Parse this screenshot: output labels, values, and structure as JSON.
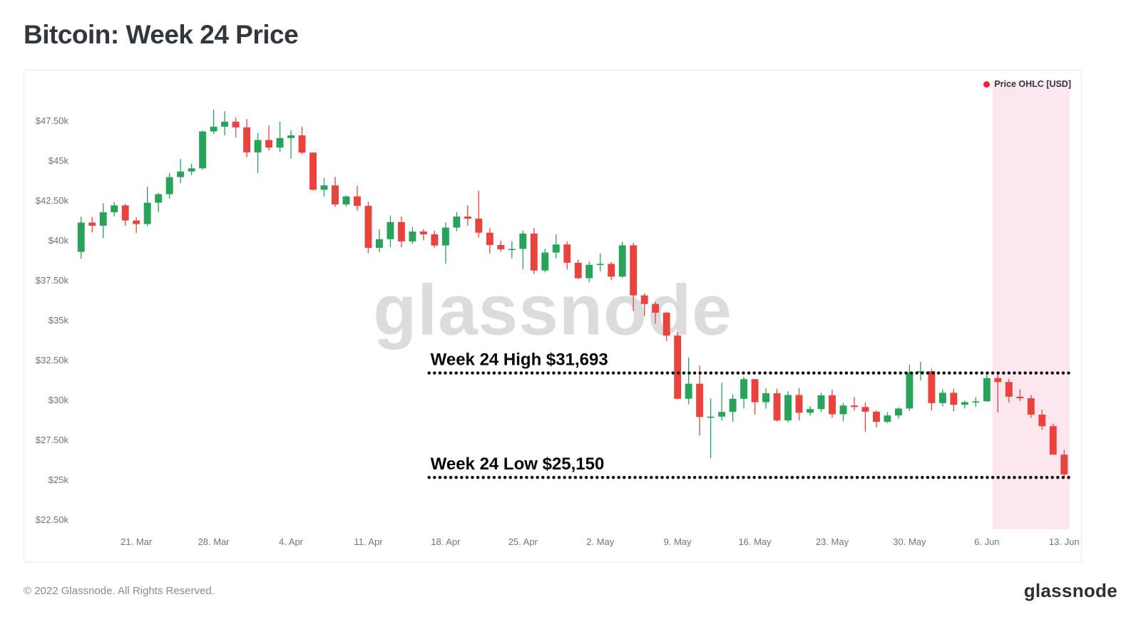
{
  "page": {
    "title": "Bitcoin: Week 24 Price",
    "watermark": "glassnode",
    "footer_left": "© 2022 Glassnode. All Rights Reserved.",
    "footer_logo": "glassnode"
  },
  "chart_data": {
    "type": "candlestick",
    "title": "Bitcoin: Week 24 Price",
    "xlabel": "",
    "ylabel": "Price OHLC [USD]",
    "grid": false,
    "ylim": [
      21900,
      49300
    ],
    "legend": {
      "label": "Price OHLC [USD]",
      "color": "#f5222d",
      "position": "top-right"
    },
    "colors": {
      "up": "#27a35a",
      "down": "#e8433d"
    },
    "highlight": {
      "name": "week-24-region",
      "start_date": "2022-06-07",
      "color": "#fce7ee"
    },
    "annotations": {
      "high": {
        "label": "Week 24 High $31,693",
        "value": 31693,
        "start_date": "2022-04-17"
      },
      "low": {
        "label": "Week 24 Low $25,150",
        "value": 25150,
        "start_date": "2022-04-17"
      }
    },
    "yticks": [
      {
        "value": 47500,
        "label": "$47.50k"
      },
      {
        "value": 45000,
        "label": "$45k"
      },
      {
        "value": 42500,
        "label": "$42.50k"
      },
      {
        "value": 40000,
        "label": "$40k"
      },
      {
        "value": 37500,
        "label": "$37.50k"
      },
      {
        "value": 35000,
        "label": "$35k"
      },
      {
        "value": 32500,
        "label": "$32.50k"
      },
      {
        "value": 30000,
        "label": "$30k"
      },
      {
        "value": 27500,
        "label": "$27.50k"
      },
      {
        "value": 25000,
        "label": "$25k"
      },
      {
        "value": 22500,
        "label": "$22.50k"
      }
    ],
    "xticks": [
      {
        "date": "2022-03-21",
        "label": "21. Mar"
      },
      {
        "date": "2022-03-28",
        "label": "28. Mar"
      },
      {
        "date": "2022-04-04",
        "label": "4. Apr"
      },
      {
        "date": "2022-04-11",
        "label": "11. Apr"
      },
      {
        "date": "2022-04-18",
        "label": "18. Apr"
      },
      {
        "date": "2022-04-25",
        "label": "25. Apr"
      },
      {
        "date": "2022-05-02",
        "label": "2. May"
      },
      {
        "date": "2022-05-09",
        "label": "9. May"
      },
      {
        "date": "2022-05-16",
        "label": "16. May"
      },
      {
        "date": "2022-05-23",
        "label": "23. May"
      },
      {
        "date": "2022-05-30",
        "label": "30. May"
      },
      {
        "date": "2022-06-06",
        "label": "6. Jun"
      },
      {
        "date": "2022-06-13",
        "label": "13. Jun"
      }
    ],
    "ohlc_columns": [
      "date",
      "open",
      "high",
      "low",
      "close"
    ],
    "ohlc": [
      [
        "2022-03-16",
        39280,
        41478,
        38850,
        41114
      ],
      [
        "2022-03-17",
        41114,
        41459,
        40500,
        40917
      ],
      [
        "2022-03-18",
        40917,
        42325,
        40135,
        41757
      ],
      [
        "2022-03-19",
        41757,
        42400,
        41499,
        42190
      ],
      [
        "2022-03-20",
        42190,
        42301,
        40911,
        41247
      ],
      [
        "2022-03-21",
        41247,
        41454,
        40467,
        41022
      ],
      [
        "2022-03-22",
        41022,
        43361,
        40890,
        42358
      ],
      [
        "2022-03-23",
        42358,
        42968,
        41762,
        42892
      ],
      [
        "2022-03-24",
        42892,
        44220,
        42611,
        43960
      ],
      [
        "2022-03-25",
        43960,
        45094,
        43579,
        44313
      ],
      [
        "2022-03-26",
        44313,
        44797,
        44084,
        44511
      ],
      [
        "2022-03-27",
        44511,
        46896,
        44421,
        46821
      ],
      [
        "2022-03-28",
        46821,
        48189,
        46662,
        47122
      ],
      [
        "2022-03-29",
        47122,
        48096,
        46578,
        47434
      ],
      [
        "2022-03-30",
        47434,
        47700,
        46456,
        47078
      ],
      [
        "2022-03-31",
        47078,
        47600,
        45211,
        45510
      ],
      [
        "2022-04-01",
        45510,
        46720,
        44219,
        46283
      ],
      [
        "2022-04-02",
        46283,
        47213,
        45620,
        45811
      ],
      [
        "2022-04-03",
        45811,
        47444,
        45530,
        46407
      ],
      [
        "2022-04-04",
        46407,
        46890,
        45118,
        46580
      ],
      [
        "2022-04-05",
        46580,
        47106,
        45386,
        45497
      ],
      [
        "2022-04-06",
        45497,
        45507,
        43121,
        43170
      ],
      [
        "2022-04-07",
        43170,
        43900,
        42727,
        43444
      ],
      [
        "2022-04-08",
        43444,
        43970,
        42107,
        42252
      ],
      [
        "2022-04-09",
        42252,
        42800,
        42125,
        42753
      ],
      [
        "2022-04-10",
        42753,
        43410,
        41868,
        42158
      ],
      [
        "2022-04-11",
        42158,
        42414,
        39200,
        39530
      ],
      [
        "2022-04-12",
        39530,
        40699,
        39254,
        40074
      ],
      [
        "2022-04-13",
        40074,
        41561,
        39588,
        41147
      ],
      [
        "2022-04-14",
        41147,
        41495,
        39568,
        39935
      ],
      [
        "2022-04-15",
        39935,
        40846,
        39766,
        40551
      ],
      [
        "2022-04-16",
        40551,
        40709,
        40009,
        40378
      ],
      [
        "2022-04-17",
        40378,
        40595,
        39546,
        39678
      ],
      [
        "2022-04-18",
        39678,
        41116,
        38536,
        40801
      ],
      [
        "2022-04-19",
        40801,
        41760,
        40571,
        41493
      ],
      [
        "2022-04-20",
        41493,
        42199,
        40916,
        41358
      ],
      [
        "2022-04-21",
        41358,
        43119,
        40175,
        40480
      ],
      [
        "2022-04-22",
        40480,
        40795,
        39177,
        39709
      ],
      [
        "2022-04-23",
        39709,
        39980,
        39285,
        39439
      ],
      [
        "2022-04-24",
        39439,
        39940,
        38881,
        39463
      ],
      [
        "2022-04-25",
        39463,
        40616,
        38200,
        40426
      ],
      [
        "2022-04-26",
        40426,
        40777,
        37886,
        38112
      ],
      [
        "2022-04-27",
        38112,
        39474,
        37997,
        39235
      ],
      [
        "2022-04-28",
        39235,
        40372,
        38883,
        39742
      ],
      [
        "2022-04-29",
        39742,
        39925,
        38175,
        38596
      ],
      [
        "2022-04-30",
        38596,
        38795,
        37578,
        37630
      ],
      [
        "2022-05-01",
        37630,
        38675,
        37386,
        38468
      ],
      [
        "2022-05-02",
        38468,
        39167,
        38052,
        38525
      ],
      [
        "2022-05-03",
        38525,
        38651,
        37517,
        37728
      ],
      [
        "2022-05-04",
        37728,
        39902,
        37670,
        39690
      ],
      [
        "2022-05-05",
        39690,
        39845,
        35571,
        36552
      ],
      [
        "2022-05-06",
        36552,
        36675,
        35258,
        36013
      ],
      [
        "2022-05-07",
        36013,
        36145,
        34785,
        35472
      ],
      [
        "2022-05-08",
        35472,
        35513,
        33701,
        34038
      ],
      [
        "2022-05-09",
        34038,
        34243,
        30033,
        30077
      ],
      [
        "2022-05-10",
        30077,
        32658,
        29730,
        31017
      ],
      [
        "2022-05-11",
        31017,
        32162,
        27785,
        28936
      ],
      [
        "2022-05-12",
        28936,
        30098,
        26350,
        28959
      ],
      [
        "2022-05-13",
        28959,
        31083,
        28706,
        29253
      ],
      [
        "2022-05-14",
        29253,
        30343,
        28630,
        30078
      ],
      [
        "2022-05-15",
        30078,
        31460,
        29480,
        31305
      ],
      [
        "2022-05-16",
        31305,
        31309,
        29087,
        29862
      ],
      [
        "2022-05-17",
        29862,
        30739,
        29457,
        30425
      ],
      [
        "2022-05-18",
        30425,
        30710,
        28654,
        28720
      ],
      [
        "2022-05-19",
        28720,
        30545,
        28600,
        30314
      ],
      [
        "2022-05-20",
        30314,
        30734,
        28713,
        29200
      ],
      [
        "2022-05-21",
        29200,
        29616,
        29028,
        29432
      ],
      [
        "2022-05-22",
        29432,
        30456,
        29247,
        30293
      ],
      [
        "2022-05-23",
        30293,
        30642,
        28876,
        29109
      ],
      [
        "2022-05-24",
        29109,
        29809,
        28661,
        29655
      ],
      [
        "2022-05-25",
        29655,
        30185,
        29332,
        29562
      ],
      [
        "2022-05-26",
        29562,
        29856,
        28020,
        29267
      ],
      [
        "2022-05-27",
        29267,
        29355,
        28282,
        28627
      ],
      [
        "2022-05-28",
        28627,
        29233,
        28553,
        29031
      ],
      [
        "2022-05-29",
        29031,
        29541,
        28839,
        29468
      ],
      [
        "2022-05-30",
        29468,
        32222,
        29303,
        31734
      ],
      [
        "2022-05-31",
        31734,
        32399,
        31229,
        31801
      ],
      [
        "2022-06-01",
        31801,
        31957,
        29329,
        29805
      ],
      [
        "2022-06-02",
        29805,
        30676,
        29598,
        30452
      ],
      [
        "2022-06-03",
        30452,
        30693,
        29282,
        29700
      ],
      [
        "2022-06-04",
        29700,
        29966,
        29471,
        29864
      ],
      [
        "2022-06-05",
        29864,
        30168,
        29571,
        29919
      ],
      [
        "2022-06-06",
        29919,
        31734,
        29894,
        31373
      ],
      [
        "2022-06-07",
        31373,
        31693,
        29221,
        31125
      ],
      [
        "2022-06-08",
        31125,
        31315,
        29856,
        30205
      ],
      [
        "2022-06-09",
        30205,
        30655,
        29931,
        30110
      ],
      [
        "2022-06-10",
        30110,
        30319,
        28878,
        29083
      ],
      [
        "2022-06-11",
        29083,
        29400,
        28137,
        28360
      ],
      [
        "2022-06-12",
        28360,
        28523,
        26576,
        26574
      ],
      [
        "2022-06-13",
        26574,
        26894,
        25150,
        25340
      ]
    ]
  }
}
